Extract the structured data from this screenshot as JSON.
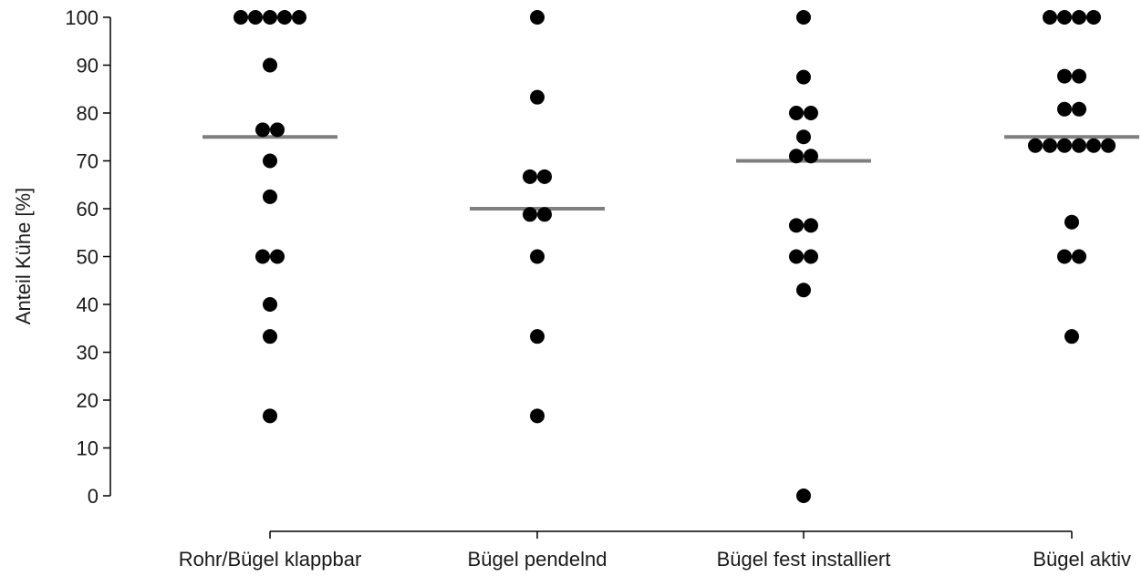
{
  "chart_data": {
    "type": "scatter",
    "title": "",
    "xlabel": "",
    "ylabel": "Anteil Kühe [%]",
    "ylim": [
      0,
      100
    ],
    "yticks": [
      0,
      10,
      20,
      30,
      40,
      50,
      60,
      70,
      80,
      90,
      100
    ],
    "grid": false,
    "categories": [
      "Rohr/Bügel klappbar",
      "Bügel pendelnd",
      "Bügel fest installiert",
      "Bügel aktiv"
    ],
    "points": [
      [
        100,
        100,
        100,
        100,
        100,
        90,
        76.5,
        76.5,
        70,
        62.5,
        50,
        50,
        40,
        33.3,
        16.7
      ],
      [
        100,
        83.3,
        66.7,
        66.7,
        58.8,
        58.8,
        50,
        33.3,
        16.7
      ],
      [
        100,
        87.5,
        80,
        80,
        75,
        71,
        71,
        56.5,
        56.5,
        50,
        50,
        43,
        0
      ],
      [
        100,
        100,
        100,
        100,
        87.7,
        87.7,
        80.8,
        80.8,
        73.2,
        73.2,
        73.2,
        73.2,
        73.2,
        73.2,
        57.2,
        50,
        50,
        33.3
      ]
    ],
    "medians": [
      75,
      60,
      70,
      75
    ],
    "colors": {
      "point": "#000000",
      "median": "#7f7f7f",
      "axis": "#000000"
    }
  }
}
